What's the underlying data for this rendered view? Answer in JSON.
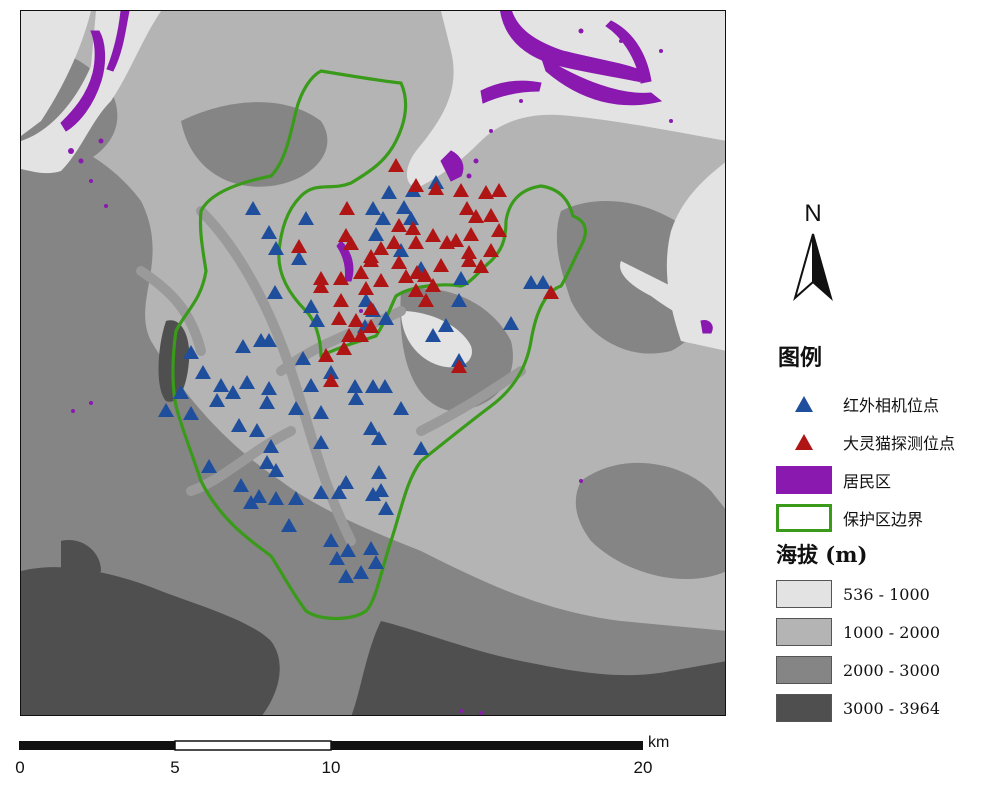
{
  "north": {
    "label": "N"
  },
  "legend": {
    "title": "图例",
    "items": [
      {
        "label": "红外相机位点",
        "symbol": "triangle",
        "color": "#1f4e9c"
      },
      {
        "label": "大灵猫探测位点",
        "symbol": "triangle",
        "color": "#b01515"
      },
      {
        "label": "居民区",
        "symbol": "fill",
        "color": "#8a19b0"
      },
      {
        "label": "保护区边界",
        "symbol": "outline",
        "color": "#3a9a1a"
      }
    ],
    "elevation_title": "海拔 (m)",
    "elevation_classes": [
      {
        "label": "536 - 1000",
        "color": "#e3e3e3"
      },
      {
        "label": "1000 - 2000",
        "color": "#b4b4b4"
      },
      {
        "label": "2000 - 3000",
        "color": "#858585"
      },
      {
        "label": "3000 - 3964",
        "color": "#4f4f4f"
      }
    ]
  },
  "scalebar": {
    "unit": "km",
    "labels": [
      "0",
      "5",
      "10",
      "20"
    ],
    "ticks_km": [
      0,
      5,
      10,
      20
    ]
  },
  "colors": {
    "camera": "#1f4e9c",
    "civet": "#b01515",
    "settlement": "#8a19b0",
    "boundary": "#3a9a1a"
  }
}
